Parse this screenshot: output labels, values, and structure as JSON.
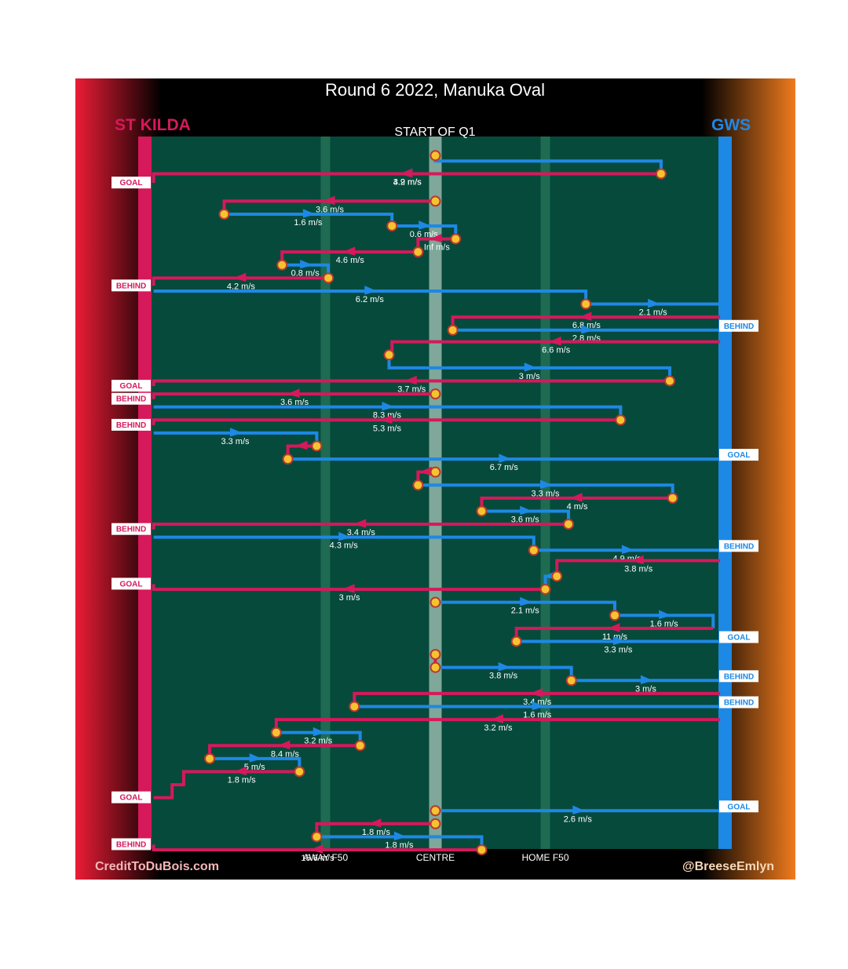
{
  "chart_data": {
    "type": "line",
    "title": "Round 6 2022, Manuka Oval",
    "subtitle": "START OF Q1",
    "team_left": {
      "name": "ST KILDA",
      "color": "#d6195b"
    },
    "team_right": {
      "name": "GWS",
      "color": "#1e88e5"
    },
    "x_axis_labels": [
      "AWAY F50",
      "CENTRE",
      "HOME F50"
    ],
    "x_axis_range": [
      0,
      100
    ],
    "x_axis_positions": [
      31,
      50,
      69
    ],
    "footer_left": "CreditToDuBois.com",
    "footer_right": "@BreeseEmlyn",
    "colors": {
      "field": "#064a3c",
      "lane": "#1f6b52",
      "centre_lane": "#7fa79a",
      "ball": "#f5c330",
      "ball_edge": "#b83a2c",
      "arrow": "#ffffff"
    },
    "series": [
      {
        "team": "GWS",
        "speed": "4.2 m/s",
        "path": [
          [
            50,
            0.5
          ],
          [
            50,
            0.92
          ],
          [
            89,
            0.92
          ],
          [
            89,
            1.9
          ],
          [
            1.3,
            1.9
          ]
        ]
      },
      {
        "team": "ST KILDA",
        "speed": "3.9 m/s",
        "path": [
          [
            89,
            1.9
          ],
          [
            1.3,
            1.9
          ],
          [
            1.3,
            2.6
          ]
        ],
        "outcome": "GOAL"
      },
      {
        "team": "ST KILDA",
        "speed": "3.6 m/s",
        "path": [
          [
            50,
            4.0
          ],
          [
            13.5,
            4.0
          ],
          [
            13.5,
            5.0
          ]
        ]
      },
      {
        "team": "GWS",
        "speed": "1.6 m/s",
        "path": [
          [
            13.5,
            5.0
          ],
          [
            42.5,
            5.0
          ],
          [
            42.5,
            5.9
          ]
        ]
      },
      {
        "team": "GWS",
        "speed": "0.6 m/s",
        "path": [
          [
            42.5,
            5.9
          ],
          [
            53.5,
            5.9
          ],
          [
            53.5,
            6.9
          ]
        ]
      },
      {
        "team": "ST KILDA",
        "speed": "Inf m/s",
        "path": [
          [
            53.5,
            6.9
          ],
          [
            47,
            6.9
          ],
          [
            47,
            7.9
          ]
        ]
      },
      {
        "team": "ST KILDA",
        "speed": "4.6 m/s",
        "path": [
          [
            47,
            7.9
          ],
          [
            23.5,
            7.9
          ],
          [
            23.5,
            8.9
          ]
        ]
      },
      {
        "team": "GWS",
        "speed": "0.8 m/s",
        "path": [
          [
            23.5,
            8.9
          ],
          [
            31.5,
            8.9
          ],
          [
            31.5,
            9.9
          ]
        ]
      },
      {
        "team": "ST KILDA",
        "speed": "4.2 m/s",
        "path": [
          [
            31.5,
            9.9
          ],
          [
            1.3,
            9.9
          ],
          [
            1.3,
            10.5
          ]
        ],
        "outcome": "BEHIND"
      },
      {
        "team": "GWS",
        "speed": "6.2 m/s",
        "path": [
          [
            1.3,
            10.9
          ],
          [
            76,
            10.9
          ],
          [
            76,
            11.9
          ]
        ]
      },
      {
        "team": "GWS",
        "speed": "2.1 m/s",
        "path": [
          [
            76,
            11.9
          ],
          [
            99.2,
            11.9
          ],
          [
            99.2,
            12.9
          ]
        ]
      },
      {
        "team": "ST KILDA",
        "speed": "6.8 m/s",
        "path": [
          [
            99.2,
            12.9
          ],
          [
            53,
            12.9
          ],
          [
            53,
            13.9
          ]
        ]
      },
      {
        "team": "GWS",
        "speed": "2.8 m/s",
        "path": [
          [
            53,
            13.9
          ],
          [
            99.2,
            13.9
          ],
          [
            99.2,
            13.6
          ]
        ],
        "outcome": "BEHIND"
      },
      {
        "team": "ST KILDA",
        "speed": "6.6 m/s",
        "path": [
          [
            99.2,
            14.8
          ],
          [
            42.5,
            14.8
          ],
          [
            42.5,
            15.8
          ]
        ]
      },
      {
        "team": "GWS",
        "speed": "3 m/s",
        "path": [
          [
            42,
            15.8
          ],
          [
            42,
            16.8
          ],
          [
            90.5,
            16.8
          ],
          [
            90.5,
            17.8
          ]
        ]
      },
      {
        "team": "ST KILDA",
        "speed": "3.7 m/s",
        "path": [
          [
            90.5,
            17.8
          ],
          [
            1.3,
            17.8
          ],
          [
            1.3,
            18.2
          ]
        ],
        "outcome": "GOAL"
      },
      {
        "team": "ST KILDA",
        "speed": "3.6 m/s",
        "path": [
          [
            50,
            18.8
          ],
          [
            1.3,
            18.8
          ],
          [
            1.3,
            19.2
          ]
        ],
        "outcome": "BEHIND"
      },
      {
        "team": "GWS",
        "speed": "8.3 m/s",
        "path": [
          [
            1.3,
            19.8
          ],
          [
            82,
            19.8
          ],
          [
            82,
            20.8
          ]
        ]
      },
      {
        "team": "ST KILDA",
        "speed": "5.3 m/s",
        "path": [
          [
            82,
            20.8
          ],
          [
            1.3,
            20.8
          ],
          [
            1.3,
            21.2
          ]
        ],
        "outcome": "BEHIND"
      },
      {
        "team": "GWS",
        "speed": "3.3 m/s",
        "path": [
          [
            1.3,
            21.8
          ],
          [
            29.5,
            21.8
          ],
          [
            29.5,
            22.8
          ]
        ]
      },
      {
        "team": "ST KILDA",
        "speed": "",
        "path": [
          [
            29.5,
            22.8
          ],
          [
            24.5,
            22.8
          ],
          [
            24.5,
            23.8
          ]
        ]
      },
      {
        "team": "GWS",
        "speed": "6.7 m/s",
        "path": [
          [
            24.5,
            23.8
          ],
          [
            99.2,
            23.8
          ],
          [
            99.2,
            23.5
          ]
        ],
        "outcome": "GOAL"
      },
      {
        "team": "ST KILDA",
        "speed": "",
        "path": [
          [
            50,
            24.8
          ],
          [
            47,
            24.8
          ],
          [
            47,
            25.8
          ]
        ]
      },
      {
        "team": "GWS",
        "speed": "3.3 m/s",
        "path": [
          [
            47,
            25.8
          ],
          [
            91,
            25.8
          ],
          [
            91,
            26.8
          ]
        ]
      },
      {
        "team": "ST KILDA",
        "speed": "4 m/s",
        "path": [
          [
            91,
            26.8
          ],
          [
            58,
            26.8
          ],
          [
            58,
            27.8
          ]
        ]
      },
      {
        "team": "GWS",
        "speed": "3.6 m/s",
        "path": [
          [
            58,
            27.8
          ],
          [
            73,
            27.8
          ],
          [
            73,
            28.8
          ]
        ]
      },
      {
        "team": "ST KILDA",
        "speed": "3.4 m/s",
        "path": [
          [
            73,
            28.8
          ],
          [
            1.3,
            28.8
          ],
          [
            1.3,
            29.2
          ]
        ],
        "outcome": "BEHIND"
      },
      {
        "team": "GWS",
        "speed": "4.3 m/s",
        "path": [
          [
            1.3,
            29.8
          ],
          [
            67,
            29.8
          ],
          [
            67,
            30.8
          ]
        ]
      },
      {
        "team": "GWS",
        "speed": "4.9 m/s",
        "path": [
          [
            67,
            30.8
          ],
          [
            99.2,
            30.8
          ],
          [
            99.2,
            30.5
          ]
        ],
        "outcome": "BEHIND"
      },
      {
        "team": "ST KILDA",
        "speed": "3.8 m/s",
        "path": [
          [
            99.2,
            31.6
          ],
          [
            71,
            31.6
          ],
          [
            71,
            32.8
          ]
        ]
      },
      {
        "team": "GWS",
        "speed": "",
        "path": [
          [
            71,
            32.8
          ],
          [
            69,
            32.8
          ],
          [
            69,
            33.8
          ]
        ]
      },
      {
        "team": "ST KILDA",
        "speed": "3 m/s",
        "path": [
          [
            69,
            33.8
          ],
          [
            1.3,
            33.8
          ],
          [
            1.3,
            33.4
          ]
        ],
        "outcome": "GOAL"
      },
      {
        "team": "GWS",
        "speed": "2.1 m/s",
        "path": [
          [
            50,
            34.8
          ],
          [
            81,
            34.8
          ],
          [
            81,
            35.8
          ]
        ]
      },
      {
        "team": "GWS",
        "speed": "1.6 m/s",
        "path": [
          [
            81,
            35.8
          ],
          [
            98,
            35.8
          ],
          [
            98,
            36.8
          ]
        ]
      },
      {
        "team": "ST KILDA",
        "speed": "11 m/s",
        "path": [
          [
            98,
            36.8
          ],
          [
            64,
            36.8
          ],
          [
            64,
            37.8
          ]
        ]
      },
      {
        "team": "GWS",
        "speed": "3.3 m/s",
        "path": [
          [
            64,
            37.8
          ],
          [
            99.2,
            37.8
          ],
          [
            99.2,
            37.5
          ]
        ],
        "outcome": "GOAL"
      },
      {
        "team": "ST KILDA",
        "speed": "",
        "path": [
          [
            50,
            38.8
          ],
          [
            50,
            39.8
          ]
        ]
      },
      {
        "team": "GWS",
        "speed": "3.8 m/s",
        "path": [
          [
            50,
            39.8
          ],
          [
            73.5,
            39.8
          ],
          [
            73.5,
            40.8
          ]
        ]
      },
      {
        "team": "GWS",
        "speed": "3 m/s",
        "path": [
          [
            73.5,
            40.8
          ],
          [
            99.2,
            40.8
          ],
          [
            99.2,
            40.5
          ]
        ],
        "outcome": "BEHIND"
      },
      {
        "team": "ST KILDA",
        "speed": "3.4 m/s",
        "path": [
          [
            99.2,
            41.8
          ],
          [
            36,
            41.8
          ],
          [
            36,
            42.8
          ]
        ]
      },
      {
        "team": "GWS",
        "speed": "1.6 m/s",
        "path": [
          [
            36,
            42.8
          ],
          [
            99.2,
            42.8
          ],
          [
            99.2,
            42.5
          ]
        ],
        "outcome": "BEHIND"
      },
      {
        "team": "ST KILDA",
        "speed": "3.2 m/s",
        "path": [
          [
            99.2,
            43.8
          ],
          [
            22.5,
            43.8
          ],
          [
            22.5,
            44.8
          ]
        ]
      },
      {
        "team": "GWS",
        "speed": "3.2 m/s",
        "path": [
          [
            22.5,
            44.8
          ],
          [
            37,
            44.8
          ],
          [
            37,
            45.8
          ]
        ]
      },
      {
        "team": "ST KILDA",
        "speed": "8.4 m/s",
        "path": [
          [
            37,
            45.8
          ],
          [
            11,
            45.8
          ],
          [
            11,
            46.8
          ]
        ]
      },
      {
        "team": "GWS",
        "speed": "5 m/s",
        "path": [
          [
            11,
            46.8
          ],
          [
            26.5,
            46.8
          ],
          [
            26.5,
            47.8
          ]
        ]
      },
      {
        "team": "ST KILDA",
        "speed": "1.8 m/s",
        "path": [
          [
            26.5,
            47.8
          ],
          [
            6.5,
            47.8
          ],
          [
            6.5,
            48.8
          ],
          [
            4.5,
            48.8
          ],
          [
            4.5,
            49.8
          ],
          [
            1.3,
            49.8
          ]
        ],
        "outcome": "GOAL"
      },
      {
        "team": "GWS",
        "speed": "2.6 m/s",
        "path": [
          [
            50,
            50.8
          ],
          [
            99.2,
            50.8
          ],
          [
            99.2,
            50.5
          ]
        ],
        "outcome": "GOAL"
      },
      {
        "team": "ST KILDA",
        "speed": "1.8 m/s",
        "path": [
          [
            50,
            51.8
          ],
          [
            29.5,
            51.8
          ],
          [
            29.5,
            52.8
          ]
        ]
      },
      {
        "team": "GWS",
        "speed": "1.8 m/s",
        "path": [
          [
            29.5,
            52.8
          ],
          [
            58,
            52.8
          ],
          [
            58,
            53.8
          ]
        ]
      },
      {
        "team": "ST KILDA",
        "speed": "15.6 m/s",
        "path": [
          [
            58,
            53.8
          ],
          [
            1.3,
            53.8
          ],
          [
            1.3,
            53.4
          ]
        ],
        "outcome": "BEHIND"
      }
    ]
  }
}
